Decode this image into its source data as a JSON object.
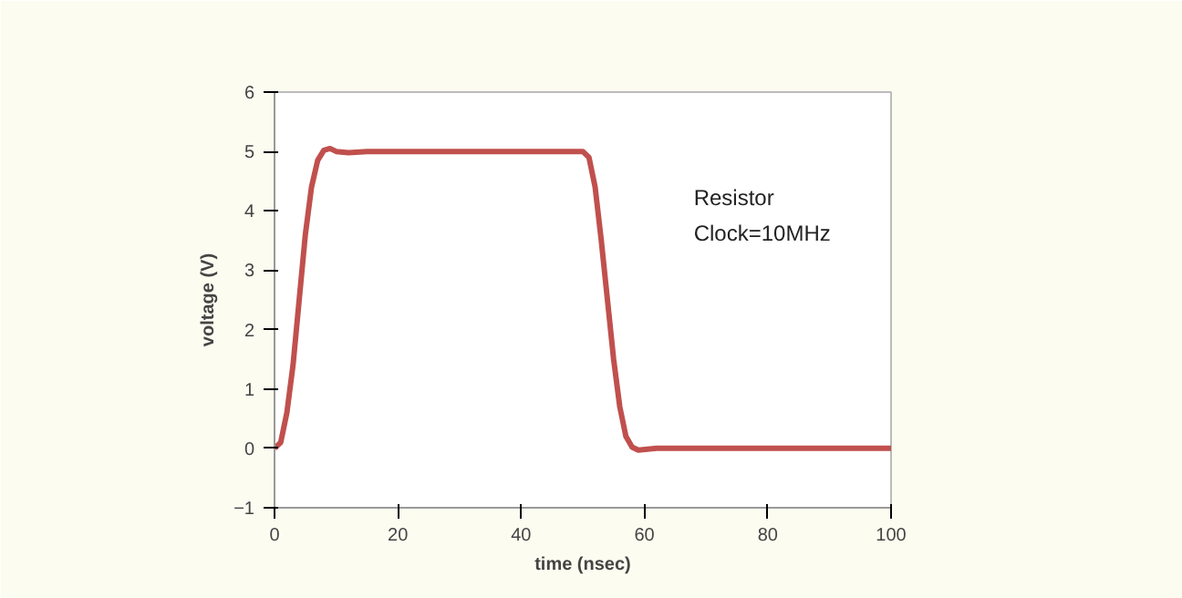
{
  "chart_data": {
    "type": "line",
    "xlabel": "time (nsec)",
    "ylabel": "voltage (V)",
    "annotations": [
      "Resistor",
      "Clock=10MHz"
    ],
    "series": [
      {
        "color": "#c0504d",
        "x": [
          0,
          1,
          2,
          3,
          4,
          5,
          6,
          7,
          8,
          9,
          10,
          12,
          15,
          20,
          30,
          40,
          50,
          51,
          52,
          53,
          54,
          55,
          56,
          57,
          58,
          59,
          62,
          70,
          80,
          90,
          100
        ],
        "values": [
          0,
          0.1,
          0.6,
          1.4,
          2.5,
          3.6,
          4.4,
          4.85,
          5.02,
          5.05,
          5.0,
          4.98,
          5.0,
          5.0,
          5.0,
          5.0,
          5.0,
          4.9,
          4.4,
          3.5,
          2.5,
          1.5,
          0.7,
          0.2,
          0.02,
          -0.03,
          0,
          0,
          0,
          0,
          0
        ]
      }
    ],
    "xlim": [
      0,
      100
    ],
    "ylim": [
      -1,
      6
    ],
    "xticks": [
      0,
      20,
      40,
      60,
      80,
      100
    ],
    "yticks": [
      -1,
      0,
      1,
      2,
      3,
      4,
      5,
      6
    ],
    "grid": false,
    "line_style": "solid",
    "marker": "none"
  }
}
